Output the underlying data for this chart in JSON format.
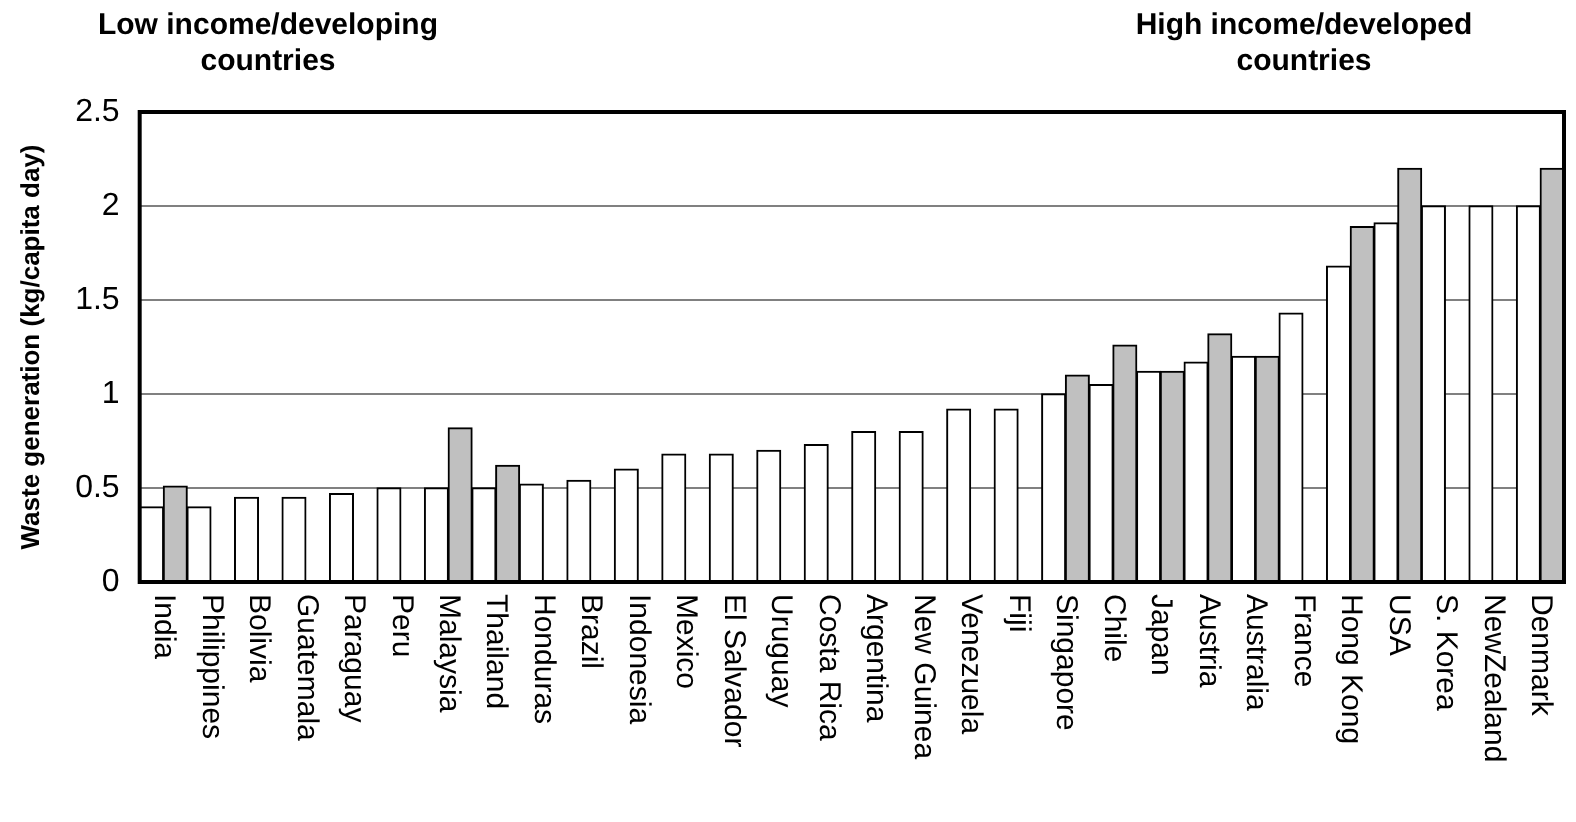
{
  "chart_data": {
    "type": "bar",
    "ylabel": "Waste generation (kg/capita day)",
    "annotations": [
      "Low income/developing countries",
      "High income/developed countries"
    ],
    "categories": [
      "India",
      "Philippines",
      "Bolivia",
      "Guatemala",
      "Paraguay",
      "Peru",
      "Malaysia",
      "Thailand",
      "Honduras",
      "Brazil",
      "Indonesia",
      "Mexico",
      "El Salvador",
      "Uruguay",
      "Costa Rica",
      "Argentina",
      "New Guinea",
      "Venezuela",
      "Fiji",
      "Singapore",
      "Chile",
      "Japan",
      "Austria",
      "Australia",
      "France",
      "Hong Kong",
      "USA",
      "S. Korea",
      "NewZealand",
      "Denmark"
    ],
    "series": [
      {
        "color": "#ffffff",
        "values": [
          0.4,
          0.4,
          0.45,
          0.45,
          0.47,
          0.5,
          0.5,
          0.5,
          0.52,
          0.54,
          0.6,
          0.68,
          0.68,
          0.7,
          0.73,
          0.8,
          0.8,
          0.92,
          0.92,
          1.0,
          1.05,
          1.12,
          1.17,
          1.2,
          1.43,
          1.68,
          1.91,
          2.0,
          2.0,
          2.0
        ]
      },
      {
        "color": "#c0c0c0",
        "values": [
          0.51,
          null,
          null,
          null,
          null,
          null,
          0.82,
          0.62,
          null,
          null,
          null,
          null,
          null,
          null,
          null,
          null,
          null,
          null,
          null,
          1.1,
          1.26,
          1.12,
          1.32,
          1.2,
          null,
          1.89,
          2.2,
          null,
          null,
          2.2
        ]
      }
    ],
    "ylim": [
      0,
      2.5
    ],
    "yticks": [
      0,
      0.5,
      1,
      1.5,
      2,
      2.5
    ],
    "grid": "y"
  }
}
